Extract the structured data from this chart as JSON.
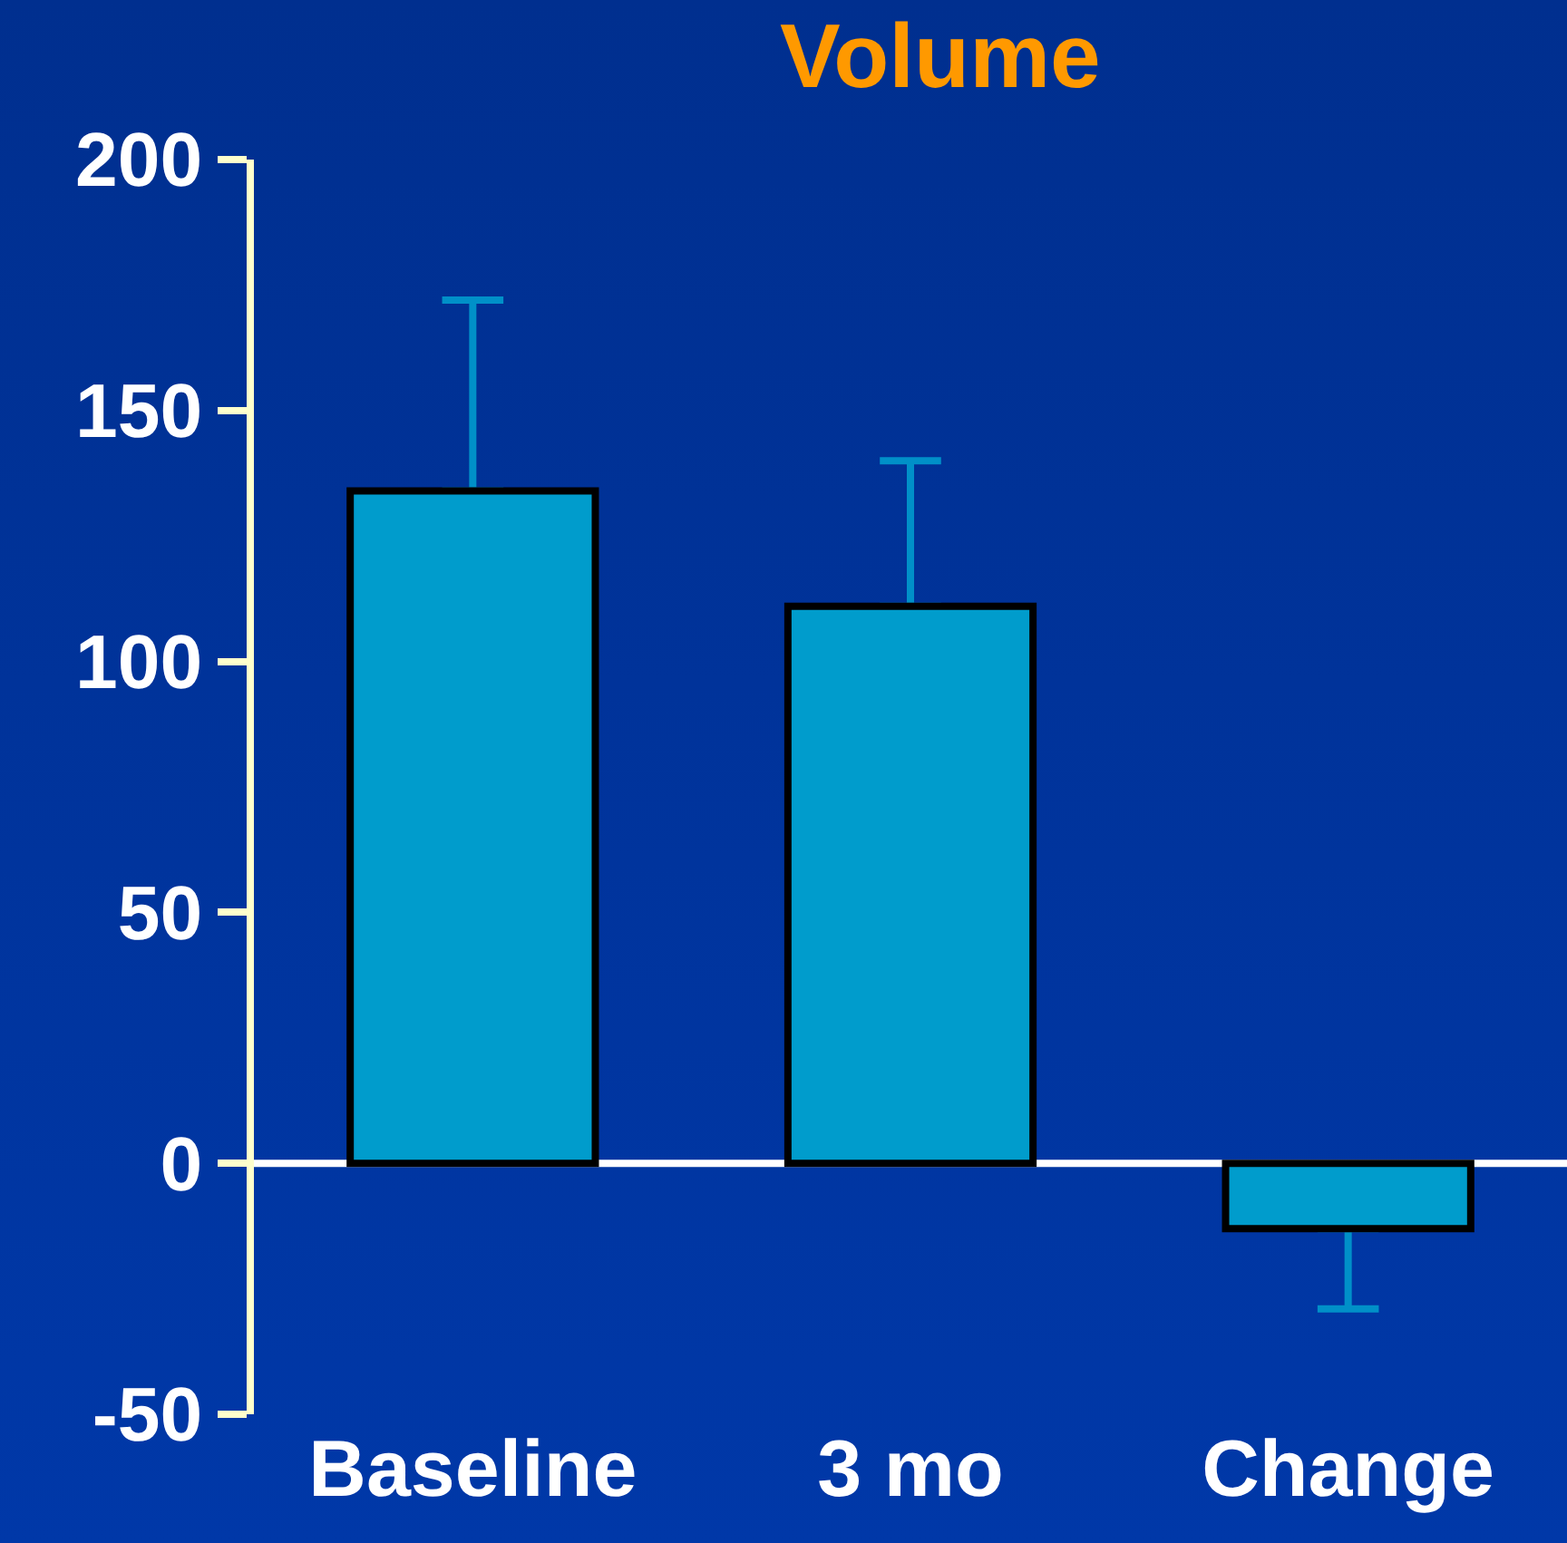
{
  "chart_data": {
    "type": "bar",
    "title": "Volume",
    "categories": [
      "Baseline",
      "3 mo",
      "Change"
    ],
    "values": [
      134,
      111,
      -13
    ],
    "errors": [
      [
        134,
        172
      ],
      [
        111,
        140
      ],
      [
        -29,
        -13
      ]
    ],
    "ref_lines": [
      {
        "axis": "y",
        "value": 0,
        "color": "#ffffff"
      }
    ],
    "color": "#009ccc",
    "ylim": [
      -50,
      200
    ],
    "yticks": [
      -50,
      0,
      50,
      100,
      150,
      200
    ],
    "grid": false,
    "legend": false
  }
}
